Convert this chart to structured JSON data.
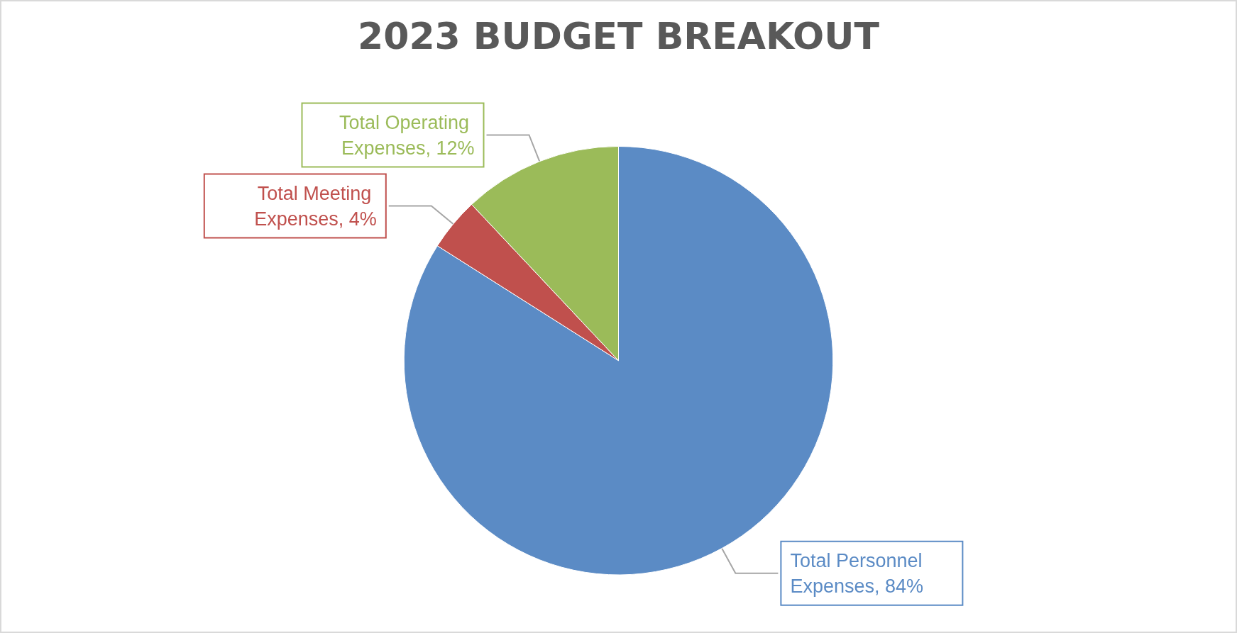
{
  "chart_data": {
    "type": "pie",
    "title": "2023 BUDGET BREAKOUT",
    "categories": [
      "Total Personnel Expenses",
      "Total Meeting Expenses",
      "Total Operating Expenses"
    ],
    "value_labels": [
      "84%",
      "4%",
      "12%"
    ],
    "values": [
      84,
      4,
      12
    ],
    "colors": [
      "#5b8bc5",
      "#c0504d",
      "#9bbb59"
    ],
    "legend": false
  }
}
